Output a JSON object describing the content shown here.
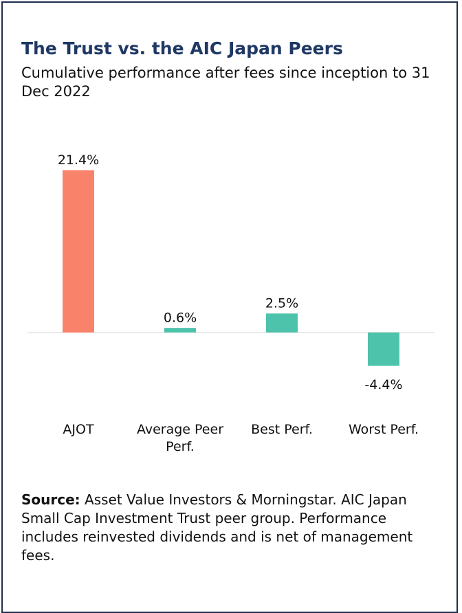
{
  "chart_data": {
    "type": "bar",
    "title": "The Trust vs. the AIC Japan Peers",
    "subtitle": "Cumulative performance after fees since inception to 31 Dec 2022",
    "categories": [
      "AJOT",
      "Average Peer Perf.",
      "Best Perf.",
      "Worst Perf."
    ],
    "values": [
      21.4,
      0.6,
      2.5,
      -4.4
    ],
    "value_labels": [
      "21.4%",
      "0.6%",
      "2.5%",
      "-4.4%"
    ],
    "colors": [
      "#f9826b",
      "#4ec3ac",
      "#4ec3ac",
      "#4ec3ac"
    ],
    "ylim": [
      -7,
      24
    ],
    "source_label": "Source:",
    "source_text": "Asset Value Investors & Morningstar. AIC Japan Small Cap Investment Trust peer group. Performance includes reinvested dividends and is net of management fees."
  }
}
